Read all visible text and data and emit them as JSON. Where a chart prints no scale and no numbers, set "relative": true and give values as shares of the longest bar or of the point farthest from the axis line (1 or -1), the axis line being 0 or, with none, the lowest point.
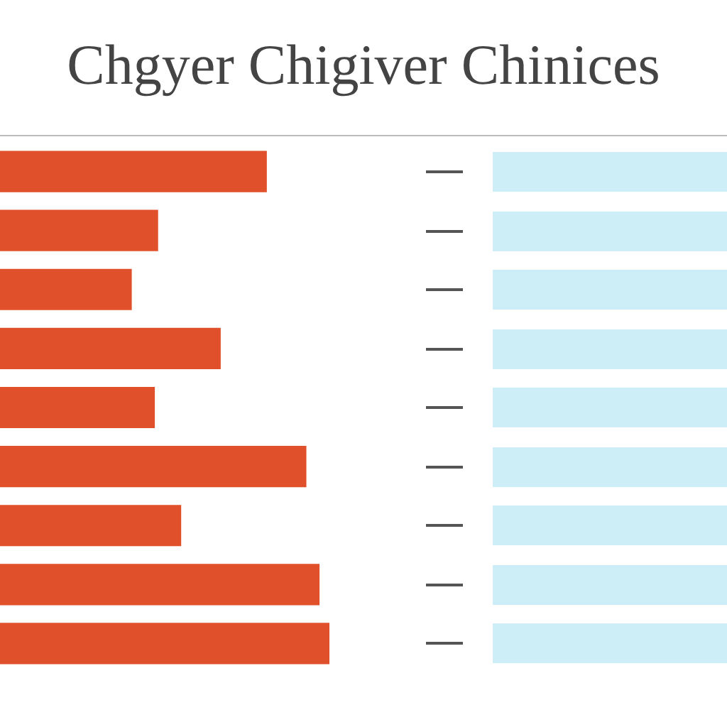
{
  "chart_data": {
    "type": "bar",
    "title": "Chgyer Chigiver Chinices",
    "orientation": "horizontal",
    "relative": true,
    "categories": [
      null,
      null,
      null,
      null,
      null,
      null,
      null,
      null,
      null
    ],
    "values": [
      0.81,
      0.48,
      0.4,
      0.67,
      0.47,
      0.93,
      0.55,
      0.97,
      1
    ],
    "color": "#e0502a",
    "legend": false
  }
}
